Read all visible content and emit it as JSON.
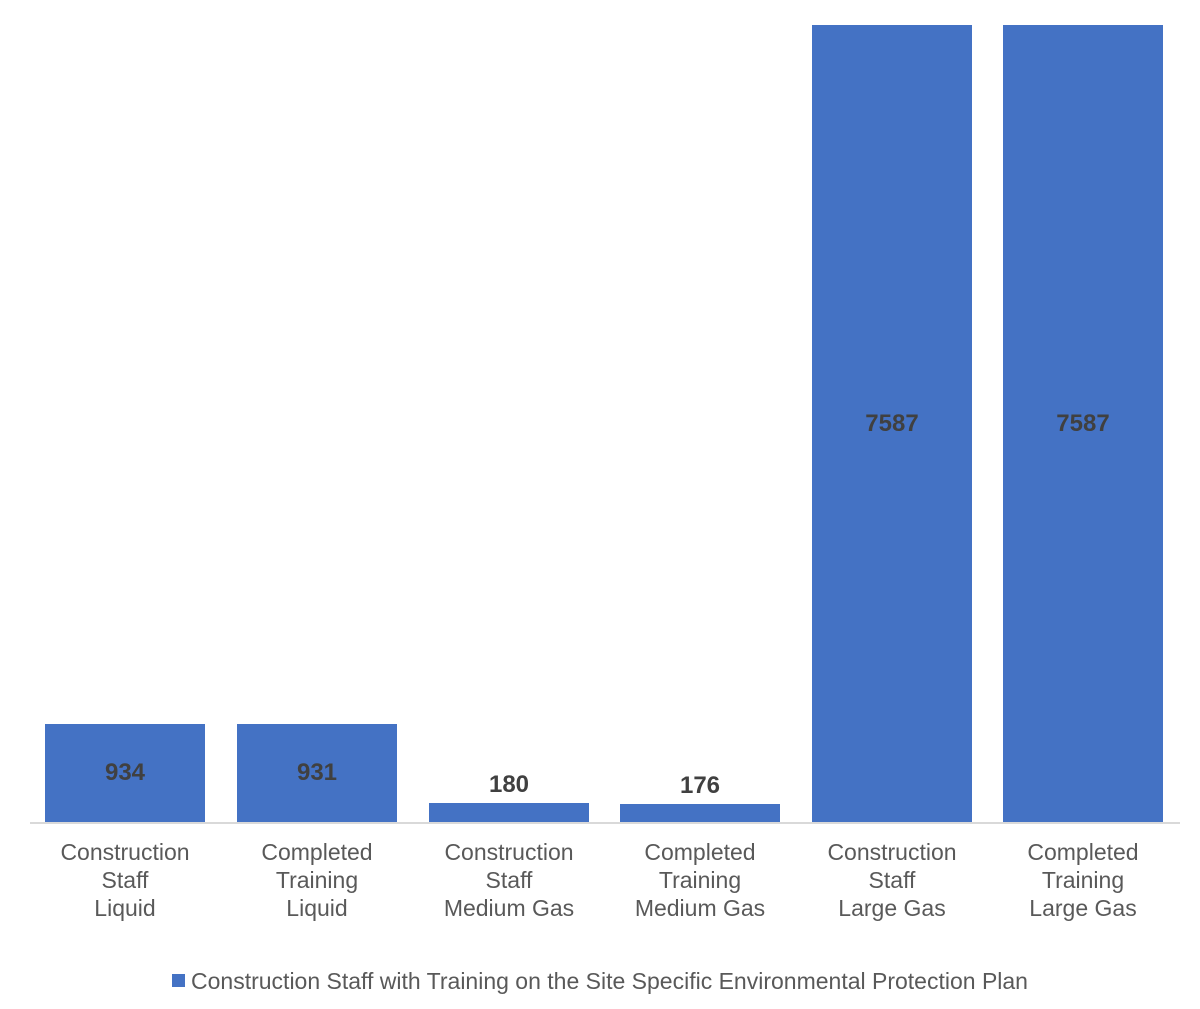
{
  "chart_data": {
    "type": "bar",
    "title": "",
    "xlabel": "",
    "ylabel": "",
    "ylim": [
      0,
      7587
    ],
    "grid": false,
    "legend_position": "bottom",
    "categories": [
      [
        "Construction",
        "Staff",
        "Liquid"
      ],
      [
        "Completed",
        "Training",
        "Liquid"
      ],
      [
        "Construction",
        "Staff",
        "Medium Gas"
      ],
      [
        "Completed",
        "Training",
        "Medium Gas"
      ],
      [
        "Construction",
        "Staff",
        "Large Gas"
      ],
      [
        "Completed",
        "Training",
        "Large Gas"
      ]
    ],
    "series": [
      {
        "name": "Construction Staff with Training on the Site Specific Environmental Protection Plan",
        "color": "#4472c4",
        "values": [
          934,
          931,
          180,
          176,
          7587,
          7587
        ],
        "labels": [
          "934",
          "931",
          "180",
          "176",
          "7587",
          "7587"
        ]
      }
    ]
  },
  "legend": {
    "label": "Construction Staff with Training on the Site Specific Environmental Protection Plan"
  }
}
